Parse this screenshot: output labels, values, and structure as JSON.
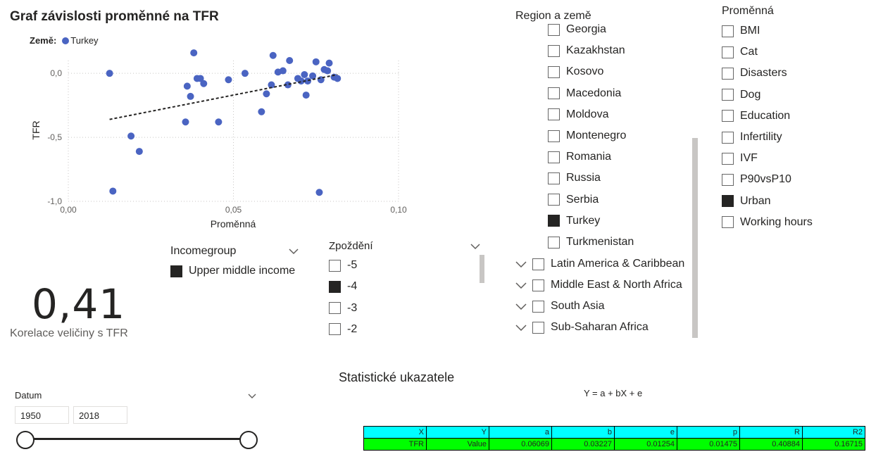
{
  "chart": {
    "title": "Graf závislosti proměnné na TFR",
    "legend_label": "Země:",
    "legend_series": "Turkey",
    "series_color": "#4a64c2",
    "trend_color": "#252423"
  },
  "chart_data": {
    "type": "scatter",
    "xlabel": "Proměnná",
    "ylabel": "TFR",
    "xlim": [
      0,
      0.1
    ],
    "ylim": [
      -1.0,
      0.1
    ],
    "x_ticks": [
      "0,00",
      "0,05",
      "0,10"
    ],
    "y_ticks": [
      "0,0",
      "-0,5",
      "-1,0"
    ],
    "grid": true,
    "series": [
      {
        "name": "Turkey",
        "points": [
          [
            0.0125,
            0.0
          ],
          [
            0.0135,
            -0.92
          ],
          [
            0.019,
            -0.49
          ],
          [
            0.0215,
            -0.61
          ],
          [
            0.0355,
            -0.38
          ],
          [
            0.036,
            -0.1
          ],
          [
            0.037,
            -0.18
          ],
          [
            0.038,
            0.16
          ],
          [
            0.039,
            -0.04
          ],
          [
            0.04,
            -0.04
          ],
          [
            0.041,
            -0.08
          ],
          [
            0.0455,
            -0.38
          ],
          [
            0.0485,
            -0.05
          ],
          [
            0.0535,
            0.0
          ],
          [
            0.0585,
            -0.3
          ],
          [
            0.06,
            -0.16
          ],
          [
            0.0615,
            -0.09
          ],
          [
            0.062,
            0.14
          ],
          [
            0.0635,
            0.01
          ],
          [
            0.065,
            0.02
          ],
          [
            0.0665,
            -0.09
          ],
          [
            0.067,
            0.1
          ],
          [
            0.0695,
            -0.04
          ],
          [
            0.0705,
            -0.06
          ],
          [
            0.0715,
            -0.01
          ],
          [
            0.072,
            -0.17
          ],
          [
            0.0725,
            -0.06
          ],
          [
            0.074,
            -0.02
          ],
          [
            0.075,
            0.09
          ],
          [
            0.076,
            -0.93
          ],
          [
            0.0765,
            -0.05
          ],
          [
            0.0775,
            0.03
          ],
          [
            0.0785,
            0.02
          ],
          [
            0.079,
            0.08
          ],
          [
            0.0805,
            -0.03
          ],
          [
            0.0815,
            -0.04
          ]
        ]
      }
    ],
    "trendline": [
      [
        0.0125,
        -0.36
      ],
      [
        0.0815,
        -0.01
      ]
    ]
  },
  "kpi": {
    "value": "0,41",
    "label": "Korelace veličiny s TFR"
  },
  "incomegroup": {
    "title": "Incomegroup",
    "items": [
      {
        "label": "Upper middle income",
        "checked": true
      }
    ]
  },
  "zpozdeni": {
    "title": "Zpoždění",
    "items": [
      {
        "label": "-5",
        "checked": false
      },
      {
        "label": "-4",
        "checked": true
      },
      {
        "label": "-3",
        "checked": false
      },
      {
        "label": "-2",
        "checked": false
      }
    ]
  },
  "region": {
    "title": "Region a země",
    "countries": [
      {
        "label": "Georgia",
        "checked": false
      },
      {
        "label": "Kazakhstan",
        "checked": false
      },
      {
        "label": "Kosovo",
        "checked": false
      },
      {
        "label": "Macedonia",
        "checked": false
      },
      {
        "label": "Moldova",
        "checked": false
      },
      {
        "label": "Montenegro",
        "checked": false
      },
      {
        "label": "Romania",
        "checked": false
      },
      {
        "label": "Russia",
        "checked": false
      },
      {
        "label": "Serbia",
        "checked": false
      },
      {
        "label": "Turkey",
        "checked": true
      },
      {
        "label": "Turkmenistan",
        "checked": false
      }
    ],
    "regions": [
      {
        "label": "Latin America & Caribbean",
        "checked": false
      },
      {
        "label": "Middle East & North Africa",
        "checked": false
      },
      {
        "label": "South Asia",
        "checked": false
      },
      {
        "label": "Sub-Saharan Africa",
        "checked": false
      }
    ]
  },
  "promenna": {
    "title": "Proměnná",
    "items": [
      {
        "label": "BMI",
        "checked": false
      },
      {
        "label": "Cat",
        "checked": false
      },
      {
        "label": "Disasters",
        "checked": false
      },
      {
        "label": "Dog",
        "checked": false
      },
      {
        "label": "Education",
        "checked": false
      },
      {
        "label": "Infertility",
        "checked": false
      },
      {
        "label": "IVF",
        "checked": false
      },
      {
        "label": "P90vsP10",
        "checked": false
      },
      {
        "label": "Urban",
        "checked": true
      },
      {
        "label": "Working hours",
        "checked": false
      }
    ]
  },
  "datum": {
    "title": "Datum",
    "from": "1950",
    "to": "2018",
    "range_start": 0.0,
    "range_end": 1.0
  },
  "stats": {
    "title": "Statistické ukazatele",
    "formula": "Y = a + bX + e",
    "headers": [
      "X",
      "Y",
      "a",
      "b",
      "e",
      "p",
      "R",
      "R2"
    ],
    "values": [
      "TFR",
      "Value",
      "0.06069",
      "0.03227",
      "0.01254",
      "0.01475",
      "0.40884",
      "0.16715"
    ],
    "header_color": "#00ffff",
    "value_color": "#00ff00"
  }
}
